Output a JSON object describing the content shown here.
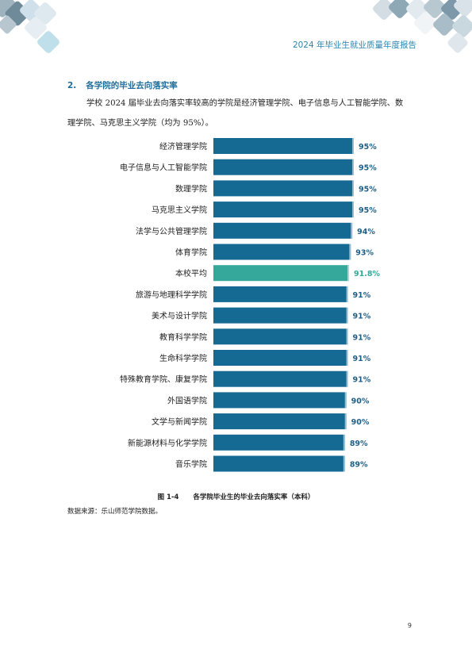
{
  "header": {
    "title": "2024 年毕业生就业质量年度报告"
  },
  "section": {
    "number": "2.",
    "title": "各学院的毕业去向落实率",
    "intro": "学校 2024 届毕业去向落实率较高的学院是经济管理学院、电子信息与人工智能学院、数理学院、马克思主义学院（均为 95%）。"
  },
  "figure": {
    "number": "图 1-4",
    "caption": "各学院毕业生的毕业去向落实率（本科）",
    "source": "数据来源：乐山师范学院数据。"
  },
  "page_number": "9",
  "colors": {
    "bar": "#156a94",
    "highlight": "#36a89b",
    "label": "#1f5f86",
    "accent": "#2a86b0"
  },
  "chart_data": {
    "type": "bar",
    "orientation": "horizontal",
    "title": "",
    "xlabel": "",
    "ylabel": "",
    "unit": "%",
    "xlim": [
      0,
      100
    ],
    "grid": false,
    "legend": "none",
    "categories": [
      "经济管理学院",
      "电子信息与人工智能学院",
      "数理学院",
      "马克思主义学院",
      "法学与公共管理学院",
      "体育学院",
      "本校平均",
      "旅游与地理科学学院",
      "美术与设计学院",
      "教育科学学院",
      "生命科学学院",
      "特殊教育学院、康复学院",
      "外国语学院",
      "文学与新闻学院",
      "新能源材料与化学学院",
      "音乐学院"
    ],
    "values": [
      95,
      95,
      95,
      95,
      94,
      93,
      91.8,
      91,
      91,
      91,
      91,
      91,
      90,
      90,
      89,
      89
    ],
    "value_labels": [
      "95%",
      "95%",
      "95%",
      "95%",
      "94%",
      "93%",
      "91.8%",
      "91%",
      "91%",
      "91%",
      "91%",
      "91%",
      "90%",
      "90%",
      "89%",
      "89%"
    ],
    "highlight_index": 6
  }
}
